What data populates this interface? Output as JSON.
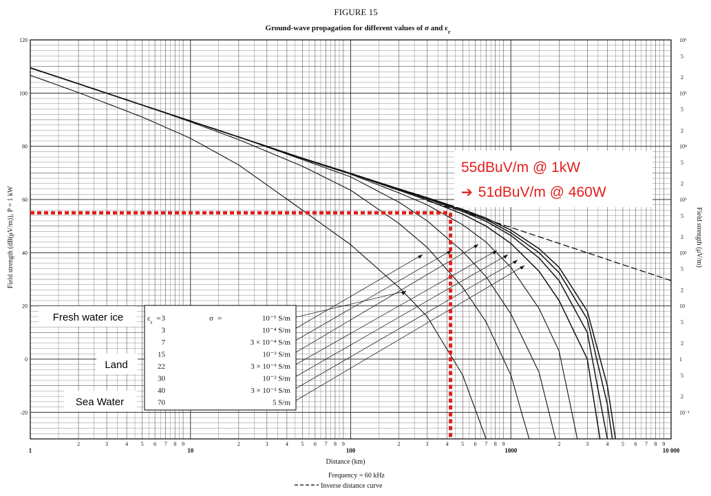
{
  "figure_label": "FIGURE 15",
  "chart_data": {
    "type": "line",
    "title": "Ground-wave propagation for different values of σ and ε",
    "title_subscript": "r",
    "xlabel": "Distance (km)",
    "ylabel_left": "Field strength (dB(μV/m)), P = 1 kW",
    "ylabel_right": "Field strength (μV/m)",
    "x_scale": "log",
    "xlim": [
      1,
      10000
    ],
    "ylim": [
      -30,
      120
    ],
    "x_ticks": [
      "1",
      "10",
      "100",
      "1000",
      "10 000"
    ],
    "x_minor_tick_labels": [
      "2",
      "3",
      "4",
      "5",
      "6",
      "7",
      "8",
      "9"
    ],
    "y_ticks": [
      "120",
      "100",
      "80",
      "60",
      "40",
      "20",
      "0",
      "-20"
    ],
    "y_right_ticks": [
      {
        "db": 120,
        "label": "10⁶"
      },
      {
        "db": 100,
        "label": "10⁵"
      },
      {
        "db": 80,
        "label": "10⁴"
      },
      {
        "db": 60,
        "label": "10³"
      },
      {
        "db": 40,
        "label": "10²"
      },
      {
        "db": 20,
        "label": "10"
      },
      {
        "db": 0,
        "label": "1"
      },
      {
        "db": -20,
        "label": "10⁻¹"
      }
    ],
    "y_right_minor_labels": [
      "2",
      "5"
    ],
    "grid": true,
    "footer_frequency": "Frequency = 60 kHz",
    "footer_inverse": "Inverse distance curve",
    "series": [
      {
        "epsilon": "3",
        "sigma": "10⁻⁵ S/m",
        "x": [
          1,
          2,
          5,
          10,
          20,
          50,
          100,
          200,
          300,
          500,
          700
        ],
        "y": [
          106.7,
          100.2,
          91,
          83,
          73,
          56,
          43,
          27,
          16,
          -6,
          -30
        ]
      },
      {
        "epsilon": "3",
        "sigma": "10⁻⁴ S/m",
        "x": [
          1,
          2,
          5,
          10,
          20,
          50,
          100,
          200,
          300,
          500,
          700,
          1000,
          1300
        ],
        "y": [
          109.5,
          103.5,
          95.5,
          89.2,
          82.5,
          72.5,
          63.5,
          51,
          42,
          27,
          14,
          -6,
          -30
        ]
      },
      {
        "epsilon": "7",
        "sigma": "3 × 10⁻⁴ S/m",
        "x": [
          1,
          2,
          5,
          10,
          20,
          50,
          100,
          200,
          300,
          500,
          700,
          1000,
          1500,
          1900
        ],
        "y": [
          109.5,
          103.5,
          95.5,
          89.5,
          83.5,
          75,
          68.5,
          59,
          52,
          40.5,
          31,
          17,
          -5,
          -30
        ]
      },
      {
        "epsilon": "15",
        "sigma": "10⁻³ S/m",
        "x": [
          1,
          2,
          5,
          10,
          20,
          50,
          100,
          200,
          300,
          500,
          700,
          1000,
          1500,
          2000,
          2600
        ],
        "y": [
          109.5,
          103.5,
          95.5,
          89.5,
          83.5,
          75.3,
          69.5,
          62.5,
          58,
          50.5,
          44,
          34.5,
          19,
          3,
          -30
        ]
      },
      {
        "epsilon": "22",
        "sigma": "3 × 10⁻³ S/m",
        "x": [
          1,
          2,
          5,
          10,
          20,
          50,
          100,
          200,
          300,
          500,
          700,
          1000,
          1500,
          2000,
          3000,
          3600
        ],
        "y": [
          109.5,
          103.5,
          95.5,
          89.5,
          83.5,
          75.5,
          69.7,
          63.5,
          59.8,
          54.5,
          50,
          43.5,
          33,
          22,
          0,
          -30
        ]
      },
      {
        "epsilon": "30",
        "sigma": "10⁻² S/m",
        "x": [
          1,
          2,
          5,
          10,
          20,
          50,
          100,
          200,
          300,
          500,
          700,
          1000,
          1500,
          2000,
          3000,
          4000
        ],
        "y": [
          109.5,
          103.5,
          95.5,
          89.5,
          83.5,
          75.5,
          69.8,
          63.8,
          60.3,
          55.5,
          51.8,
          46.5,
          38,
          29.5,
          10,
          -30
        ]
      },
      {
        "epsilon": "40",
        "sigma": "3 × 10⁻² S/m",
        "x": [
          1,
          2,
          5,
          10,
          20,
          50,
          100,
          200,
          300,
          500,
          700,
          1000,
          1500,
          2000,
          3000,
          4000,
          4300
        ],
        "y": [
          109.5,
          103.5,
          95.5,
          89.5,
          83.5,
          75.5,
          69.8,
          63.9,
          60.5,
          56,
          52.5,
          47.5,
          40,
          32.5,
          15,
          -17,
          -30
        ]
      },
      {
        "epsilon": "70",
        "sigma": "5 S/m",
        "x": [
          1,
          2,
          5,
          10,
          20,
          50,
          100,
          200,
          300,
          500,
          700,
          1000,
          1500,
          2000,
          3000,
          4000,
          4500
        ],
        "y": [
          109.5,
          103.5,
          95.5,
          89.5,
          83.5,
          75.5,
          69.8,
          64,
          60.7,
          56.3,
          53,
          48.5,
          41.5,
          34.5,
          18,
          -10,
          -30
        ]
      },
      {
        "name": "Inverse distance curve",
        "dashed": true,
        "x": [
          300,
          500,
          1000,
          2000,
          5000,
          10000
        ],
        "y": [
          59.5,
          55.5,
          49.5,
          43.5,
          35.5,
          29.5
        ]
      }
    ],
    "annotation_lines": {
      "y": 55,
      "x": 420
    },
    "annotation_text": [
      "55dBuV/m @ 1kW",
      "51dBuV/m @ 460W"
    ],
    "regions": [
      "Fresh water ice",
      "Land",
      "Sea Water"
    ],
    "legend": {
      "epsilon_symbol": "ε",
      "epsilon_subscript": "r",
      "epsilon_eq": "=",
      "sigma_symbol": "σ",
      "sigma_eq": "=",
      "rows": [
        {
          "eps": "3",
          "sigma": "10⁻⁵ S/m"
        },
        {
          "eps": "3",
          "sigma": "10⁻⁴ S/m"
        },
        {
          "eps": "7",
          "sigma": "3 × 10⁻⁴ S/m"
        },
        {
          "eps": "15",
          "sigma": "10⁻³ S/m"
        },
        {
          "eps": "22",
          "sigma": "3 × 10⁻³ S/m"
        },
        {
          "eps": "30",
          "sigma": "10⁻² S/m"
        },
        {
          "eps": "40",
          "sigma": "3 × 10⁻² S/m"
        },
        {
          "eps": "70",
          "sigma": "5 S/m"
        }
      ]
    }
  }
}
